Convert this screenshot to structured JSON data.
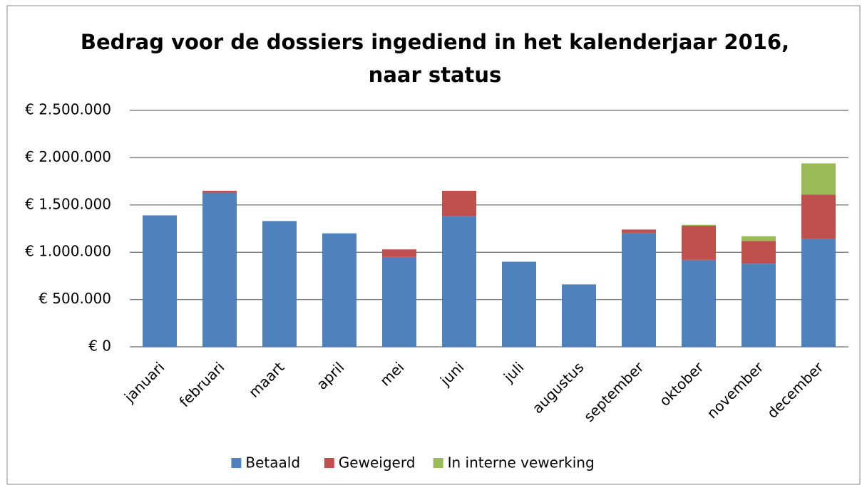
{
  "chart_data": {
    "type": "stacked_bar",
    "title": "Bedrag voor de dossiers ingediend in het kalenderjaar 2016, naar status",
    "categories": [
      "januari",
      "februari",
      "maart",
      "april",
      "mei",
      "juni",
      "juli",
      "augustus",
      "september",
      "oktober",
      "november",
      "december"
    ],
    "series": [
      {
        "name": "Betaald",
        "color": "#4f81bd",
        "values": [
          1390000,
          1630000,
          1330000,
          1200000,
          950000,
          1380000,
          900000,
          660000,
          1200000,
          920000,
          880000,
          1140000
        ]
      },
      {
        "name": "Geweigerd",
        "color": "#c0504d",
        "values": [
          0,
          20000,
          0,
          0,
          80000,
          270000,
          0,
          0,
          40000,
          360000,
          240000,
          470000
        ]
      },
      {
        "name": "In interne vewerking",
        "color": "#9bbb59",
        "values": [
          0,
          0,
          0,
          0,
          0,
          0,
          0,
          0,
          0,
          10000,
          50000,
          330000
        ]
      }
    ],
    "ylim": [
      0,
      2500000
    ],
    "yticks": [
      {
        "value": 0,
        "label": "€ 0"
      },
      {
        "value": 500000,
        "label": "€ 500.000"
      },
      {
        "value": 1000000,
        "label": "€ 1.000.000"
      },
      {
        "value": 1500000,
        "label": "€ 1.500.000"
      },
      {
        "value": 2000000,
        "label": "€ 2.000.000"
      },
      {
        "value": 2500000,
        "label": "€ 2.500.000"
      }
    ],
    "grid": true,
    "legend": "bottom"
  }
}
